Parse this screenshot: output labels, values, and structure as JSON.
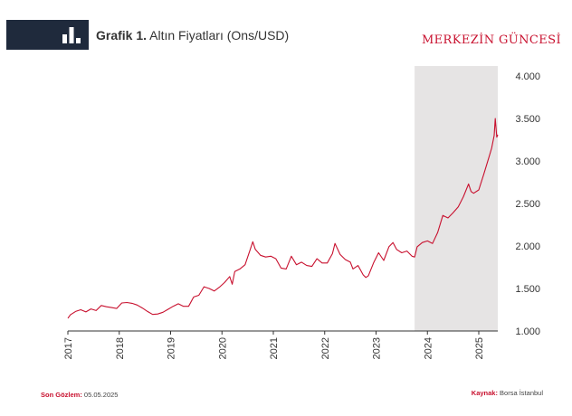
{
  "header": {
    "title_bold": "Grafik 1.",
    "title_rest": " Altın Fiyatları (Ons/USD)",
    "brand": "MERKEZİN GÜNCESİ",
    "icon": "bar-chart-icon"
  },
  "footer": {
    "last_obs_label": "Son Gözlem:",
    "last_obs_value": " 05.05.2025",
    "source_label": "Kaynak:",
    "source_value": " Borsa İstanbul"
  },
  "colors": {
    "line": "#c8102e",
    "shade": "#e6e4e4",
    "header_band": "#1f2a3c",
    "accent": "#c8102e"
  },
  "chart_data": {
    "type": "line",
    "title": "Altın Fiyatları (Ons/USD)",
    "xlabel": "",
    "ylabel": "",
    "ylim": [
      1000,
      4000
    ],
    "y_axis_side": "right",
    "yticks": [
      1000,
      1500,
      2000,
      2500,
      3000,
      3500,
      4000
    ],
    "ytick_labels": [
      "1.000",
      "1.500",
      "2.000",
      "2.500",
      "3.000",
      "3.500",
      "4.000"
    ],
    "xlim": [
      2017.0,
      2025.37
    ],
    "xticks": [
      2017,
      2018,
      2019,
      2020,
      2021,
      2022,
      2023,
      2024,
      2025
    ],
    "xtick_labels": [
      "2017",
      "2018",
      "2019",
      "2020",
      "2021",
      "2022",
      "2023",
      "2024",
      "2025"
    ],
    "shaded_region": [
      2023.75,
      2025.37
    ],
    "grid": false,
    "series": [
      {
        "name": "",
        "points": [
          [
            2017.0,
            1150
          ],
          [
            2017.05,
            1190
          ],
          [
            2017.15,
            1230
          ],
          [
            2017.25,
            1250
          ],
          [
            2017.35,
            1225
          ],
          [
            2017.45,
            1260
          ],
          [
            2017.55,
            1240
          ],
          [
            2017.65,
            1300
          ],
          [
            2017.75,
            1285
          ],
          [
            2017.85,
            1275
          ],
          [
            2017.95,
            1265
          ],
          [
            2018.05,
            1330
          ],
          [
            2018.15,
            1335
          ],
          [
            2018.25,
            1325
          ],
          [
            2018.35,
            1305
          ],
          [
            2018.45,
            1270
          ],
          [
            2018.55,
            1230
          ],
          [
            2018.65,
            1195
          ],
          [
            2018.75,
            1200
          ],
          [
            2018.85,
            1220
          ],
          [
            2018.95,
            1255
          ],
          [
            2019.05,
            1290
          ],
          [
            2019.15,
            1320
          ],
          [
            2019.25,
            1290
          ],
          [
            2019.35,
            1290
          ],
          [
            2019.45,
            1400
          ],
          [
            2019.55,
            1420
          ],
          [
            2019.65,
            1520
          ],
          [
            2019.75,
            1500
          ],
          [
            2019.85,
            1470
          ],
          [
            2019.95,
            1515
          ],
          [
            2020.05,
            1570
          ],
          [
            2020.15,
            1640
          ],
          [
            2020.2,
            1550
          ],
          [
            2020.25,
            1700
          ],
          [
            2020.35,
            1730
          ],
          [
            2020.45,
            1780
          ],
          [
            2020.55,
            1960
          ],
          [
            2020.6,
            2050
          ],
          [
            2020.65,
            1960
          ],
          [
            2020.75,
            1890
          ],
          [
            2020.85,
            1870
          ],
          [
            2020.95,
            1880
          ],
          [
            2021.05,
            1850
          ],
          [
            2021.15,
            1740
          ],
          [
            2021.25,
            1730
          ],
          [
            2021.35,
            1880
          ],
          [
            2021.45,
            1780
          ],
          [
            2021.55,
            1810
          ],
          [
            2021.65,
            1770
          ],
          [
            2021.75,
            1760
          ],
          [
            2021.85,
            1850
          ],
          [
            2021.95,
            1800
          ],
          [
            2022.05,
            1800
          ],
          [
            2022.15,
            1910
          ],
          [
            2022.2,
            2030
          ],
          [
            2022.3,
            1900
          ],
          [
            2022.4,
            1840
          ],
          [
            2022.5,
            1810
          ],
          [
            2022.55,
            1730
          ],
          [
            2022.65,
            1770
          ],
          [
            2022.75,
            1660
          ],
          [
            2022.8,
            1630
          ],
          [
            2022.85,
            1650
          ],
          [
            2022.95,
            1800
          ],
          [
            2023.05,
            1920
          ],
          [
            2023.15,
            1830
          ],
          [
            2023.25,
            1990
          ],
          [
            2023.33,
            2040
          ],
          [
            2023.4,
            1960
          ],
          [
            2023.5,
            1920
          ],
          [
            2023.6,
            1940
          ],
          [
            2023.7,
            1880
          ],
          [
            2023.75,
            1870
          ],
          [
            2023.8,
            1990
          ],
          [
            2023.9,
            2040
          ],
          [
            2024.0,
            2060
          ],
          [
            2024.1,
            2030
          ],
          [
            2024.2,
            2160
          ],
          [
            2024.3,
            2360
          ],
          [
            2024.4,
            2330
          ],
          [
            2024.5,
            2390
          ],
          [
            2024.6,
            2460
          ],
          [
            2024.7,
            2580
          ],
          [
            2024.8,
            2730
          ],
          [
            2024.85,
            2640
          ],
          [
            2024.9,
            2620
          ],
          [
            2025.0,
            2660
          ],
          [
            2025.1,
            2850
          ],
          [
            2025.2,
            3050
          ],
          [
            2025.25,
            3150
          ],
          [
            2025.3,
            3300
          ],
          [
            2025.32,
            3500
          ],
          [
            2025.35,
            3280
          ],
          [
            2025.37,
            3310
          ]
        ]
      }
    ]
  }
}
